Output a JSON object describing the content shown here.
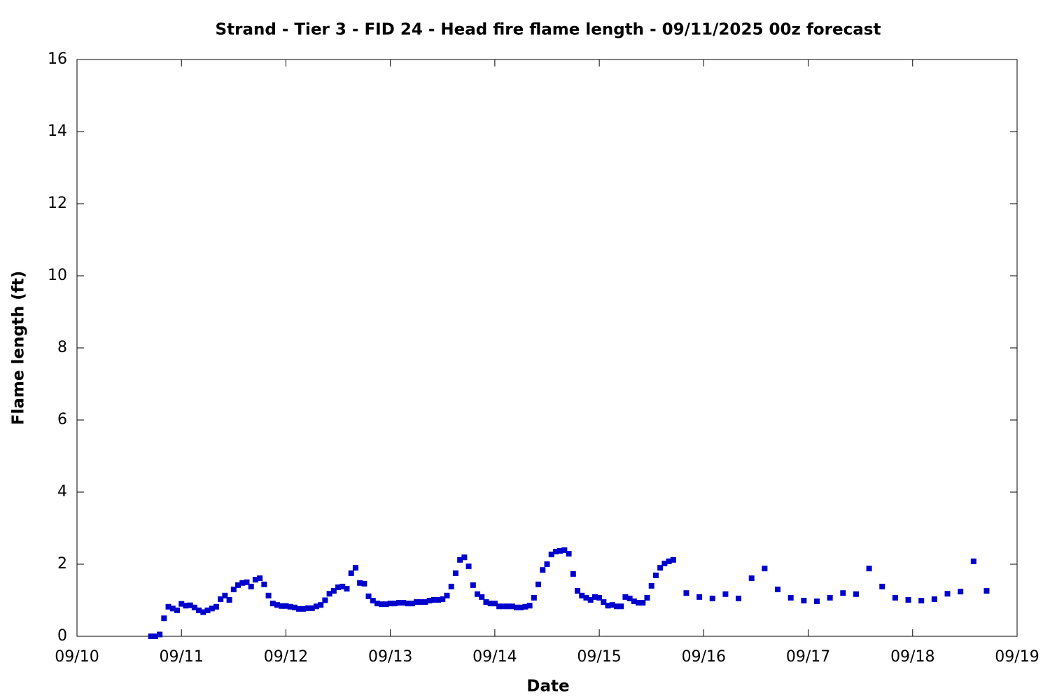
{
  "chart_data": {
    "type": "scatter",
    "title": "Strand - Tier 3 - FID 24 - Head fire flame length - 09/11/2025 00z forecast",
    "x_label": "Date",
    "y_label": "Flame length (ft)",
    "color": "#0000cc",
    "xlim": [
      0,
      216
    ],
    "xticks": [
      {
        "value": 0,
        "label": "09/10"
      },
      {
        "value": 24,
        "label": "09/11"
      },
      {
        "value": 48,
        "label": "09/12"
      },
      {
        "value": 72,
        "label": "09/13"
      },
      {
        "value": 96,
        "label": "09/14"
      },
      {
        "value": 120,
        "label": "09/15"
      },
      {
        "value": 144,
        "label": "09/16"
      },
      {
        "value": 168,
        "label": "09/17"
      },
      {
        "value": 192,
        "label": "09/18"
      },
      {
        "value": 216,
        "label": "09/19"
      }
    ],
    "ylim": [
      0,
      16
    ],
    "yticks": [
      0,
      2,
      4,
      6,
      8,
      10,
      12,
      14,
      16
    ],
    "x": [
      17,
      18,
      19,
      20,
      21,
      22,
      23,
      24,
      25,
      26,
      27,
      28,
      29,
      30,
      31,
      32,
      33,
      34,
      35,
      36,
      37,
      38,
      39,
      40,
      41,
      42,
      43,
      44,
      45,
      46,
      47,
      48,
      49,
      50,
      51,
      52,
      53,
      54,
      55,
      56,
      57,
      58,
      59,
      60,
      61,
      62,
      63,
      64,
      65,
      66,
      67,
      68,
      69,
      70,
      71,
      72,
      73,
      74,
      75,
      76,
      77,
      78,
      79,
      80,
      81,
      82,
      83,
      84,
      85,
      86,
      87,
      88,
      89,
      90,
      91,
      92,
      93,
      94,
      95,
      96,
      97,
      98,
      99,
      100,
      101,
      102,
      103,
      104,
      105,
      106,
      107,
      108,
      109,
      110,
      111,
      112,
      113,
      114,
      115,
      116,
      117,
      118,
      119,
      120,
      121,
      122,
      123,
      124,
      125,
      126,
      127,
      128,
      129,
      130,
      131,
      132,
      133,
      134,
      135,
      136,
      137,
      140,
      143,
      146,
      149,
      152,
      155,
      158,
      161,
      164,
      167,
      170,
      173,
      176,
      179,
      182,
      185,
      188,
      191,
      194,
      197,
      200,
      203,
      206,
      209
    ],
    "values": [
      0.0,
      0.0,
      0.05,
      0.5,
      0.82,
      0.77,
      0.72,
      0.9,
      0.85,
      0.86,
      0.8,
      0.72,
      0.67,
      0.72,
      0.77,
      0.82,
      1.03,
      1.13,
      1.01,
      1.3,
      1.42,
      1.48,
      1.5,
      1.38,
      1.57,
      1.61,
      1.44,
      1.13,
      0.91,
      0.87,
      0.84,
      0.84,
      0.82,
      0.8,
      0.76,
      0.76,
      0.78,
      0.78,
      0.83,
      0.87,
      1.0,
      1.18,
      1.26,
      1.36,
      1.38,
      1.32,
      1.75,
      1.9,
      1.48,
      1.46,
      1.11,
      0.99,
      0.91,
      0.89,
      0.89,
      0.91,
      0.91,
      0.93,
      0.93,
      0.91,
      0.91,
      0.95,
      0.95,
      0.95,
      0.99,
      1.01,
      1.01,
      1.03,
      1.13,
      1.38,
      1.75,
      2.12,
      2.19,
      1.94,
      1.42,
      1.17,
      1.09,
      0.95,
      0.91,
      0.91,
      0.83,
      0.83,
      0.83,
      0.83,
      0.8,
      0.8,
      0.82,
      0.85,
      1.07,
      1.44,
      1.84,
      2.0,
      2.27,
      2.35,
      2.37,
      2.39,
      2.29,
      1.73,
      1.26,
      1.13,
      1.07,
      1.01,
      1.09,
      1.07,
      0.95,
      0.85,
      0.87,
      0.83,
      0.83,
      1.09,
      1.05,
      0.97,
      0.93,
      0.93,
      1.07,
      1.4,
      1.69,
      1.9,
      2.02,
      2.08,
      2.12,
      1.2,
      1.09,
      1.05,
      1.17,
      1.05,
      1.61,
      1.88,
      1.3,
      1.07,
      0.99,
      0.97,
      1.07,
      1.2,
      1.17,
      1.88,
      1.38,
      1.07,
      1.01,
      0.99,
      1.03,
      1.18,
      1.24,
      2.08,
      1.26
    ]
  }
}
